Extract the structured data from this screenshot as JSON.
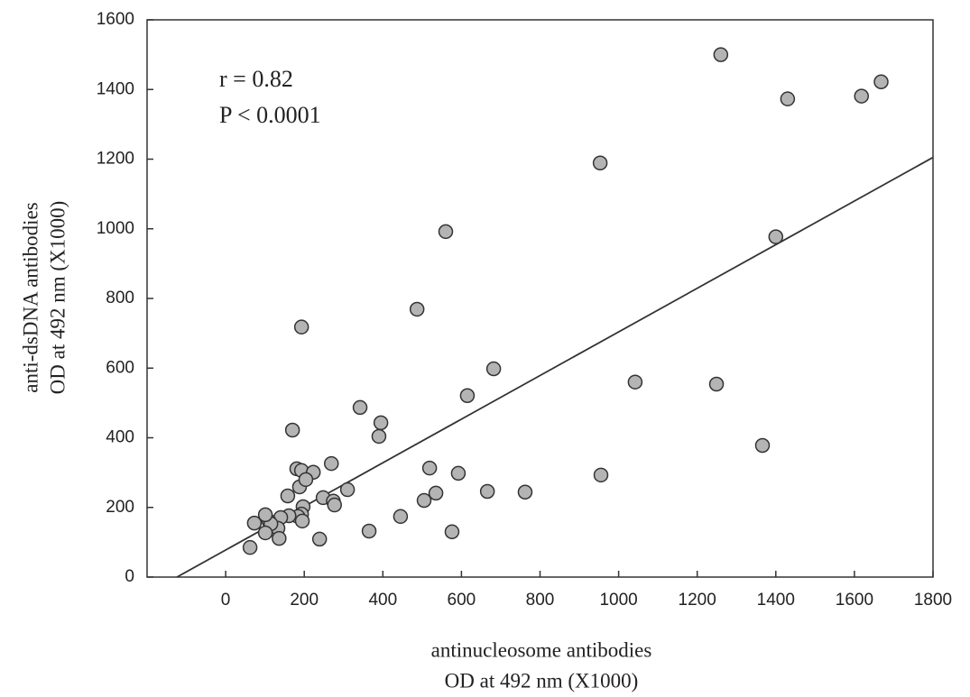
{
  "chart_data": {
    "type": "scatter",
    "xlabel": [
      "antinucleosome antibodies",
      "OD at 492 nm (X1000)"
    ],
    "ylabel": [
      "anti-dsDNA antibodies",
      "OD at 492 nm (X1000)"
    ],
    "annotations": [
      "r = 0.82",
      "P < 0.0001"
    ],
    "x": [
      1260,
      1430,
      1618,
      1668,
      953,
      560,
      1400,
      193,
      487,
      682,
      615,
      1042,
      1249,
      1366,
      955,
      342,
      395,
      390,
      170,
      181,
      193,
      223,
      269,
      188,
      204,
      158,
      310,
      248,
      274,
      277,
      197,
      193,
      184,
      195,
      161,
      140,
      133,
      136,
      110,
      115,
      101,
      73,
      101,
      62,
      239,
      365,
      445,
      505,
      519,
      535,
      592,
      576,
      666,
      762
    ],
    "values": [
      1500,
      1373,
      1381,
      1422,
      1189,
      992,
      977,
      718,
      769,
      598,
      521,
      560,
      554,
      378,
      293,
      487,
      443,
      404,
      422,
      311,
      306,
      301,
      326,
      259,
      280,
      233,
      251,
      228,
      218,
      207,
      202,
      181,
      174,
      161,
      176,
      171,
      140,
      111,
      161,
      153,
      179,
      155,
      127,
      85,
      109,
      132,
      174,
      220,
      313,
      241,
      298,
      130,
      246,
      244
    ],
    "color": "#b4b4b4",
    "fit": {
      "x": [
        -124,
        1800
      ],
      "values": [
        0,
        1205
      ],
      "color": "#333333"
    },
    "xlim": [
      -200,
      1800
    ],
    "ylim": [
      0,
      1600
    ],
    "xticks": [
      0,
      200,
      400,
      600,
      800,
      1000,
      1200,
      1400,
      1600,
      1800
    ],
    "yticks": [
      0,
      200,
      400,
      600,
      800,
      1000,
      1200,
      1400,
      1600
    ]
  }
}
